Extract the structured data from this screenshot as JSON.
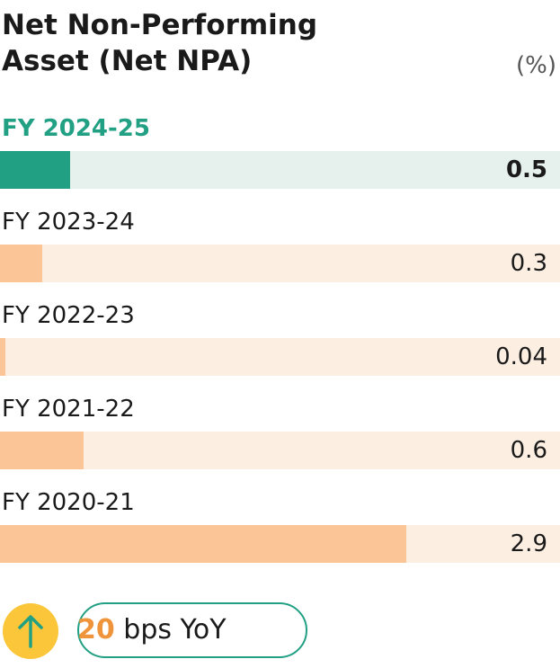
{
  "title": "Net Non-Performing Asset (Net NPA)",
  "unit": "(%)",
  "chart_data": {
    "type": "bar",
    "orientation": "horizontal",
    "title": "Net Non-Performing Asset (Net NPA)",
    "unit": "(%)",
    "categories": [
      "FY 2024-25",
      "FY 2023-24",
      "FY 2022-23",
      "FY 2021-22",
      "FY 2020-21"
    ],
    "values": [
      0.5,
      0.3,
      0.04,
      0.6,
      2.9
    ],
    "value_labels": [
      "0.5",
      "0.3",
      "0.04",
      "0.6",
      "2.9"
    ],
    "xlim": [
      0,
      4.0
    ],
    "highlight_index": 0
  },
  "badge": {
    "number": "20",
    "text": "bps YoY",
    "icon": "arrow-up-icon"
  },
  "colors": {
    "current_fill": "#22a084",
    "current_track": "#e6f1ee",
    "past_fill": "#fbc597",
    "past_track": "#fdeee2",
    "badge_number": "#f0943c",
    "badge_border": "#22a084",
    "arrow_circle": "#fcc63a"
  }
}
